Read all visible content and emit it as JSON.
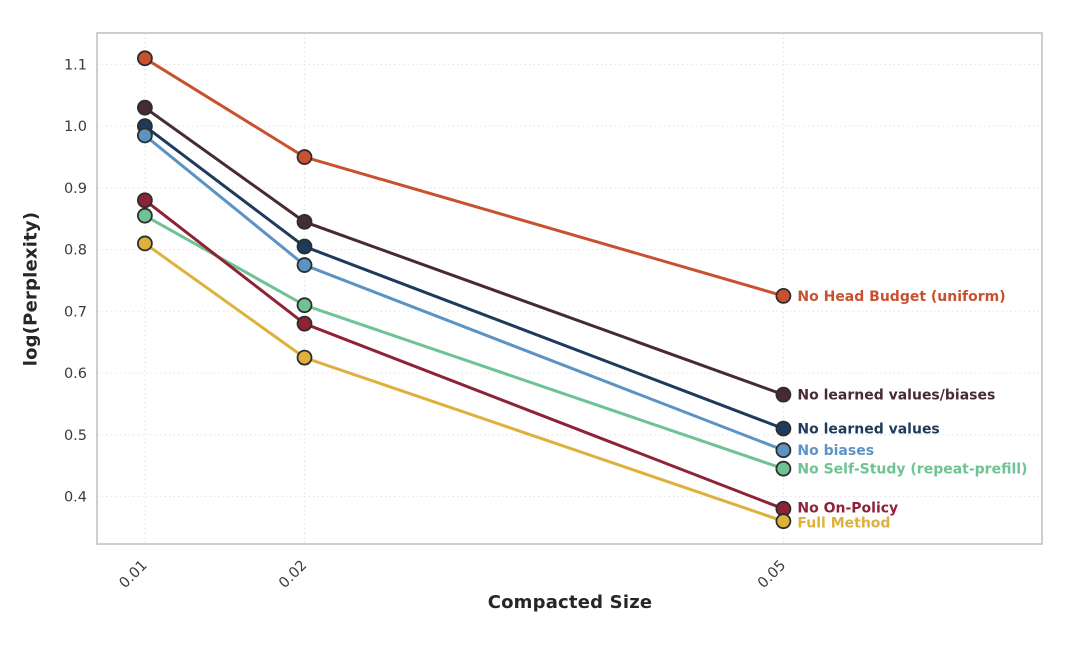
{
  "chart_data": {
    "type": "line",
    "x": [
      0.01,
      0.02,
      0.05
    ],
    "x_tick_labels": [
      "0.01",
      "0.02",
      "0.05"
    ],
    "y_ticks": [
      0.4,
      0.5,
      0.6,
      0.7,
      0.8,
      0.9,
      1.0,
      1.1
    ],
    "xlabel": "Compacted Size",
    "ylabel": "log(Perplexity)",
    "xlim": [
      0.007,
      0.0662
    ],
    "ylim": [
      0.323,
      1.151
    ],
    "grid": true,
    "legend_position": "end-of-line-labels",
    "marker": "circle",
    "series": [
      {
        "name": "No Head Budget (uniform)",
        "color": "#c9512f",
        "values": [
          1.11,
          0.95,
          0.725
        ]
      },
      {
        "name": "No learned values/biases",
        "color": "#472a36",
        "values": [
          1.03,
          0.845,
          0.565
        ]
      },
      {
        "name": "No learned values",
        "color": "#1e3a5c",
        "values": [
          1.0,
          0.805,
          0.51
        ]
      },
      {
        "name": "No biases",
        "color": "#5b93c4",
        "values": [
          0.985,
          0.775,
          0.475
        ]
      },
      {
        "name": "No Self-Study (repeat-prefill)",
        "color": "#6ec394",
        "values": [
          0.855,
          0.71,
          0.445
        ]
      },
      {
        "name": "No On-Policy",
        "color": "#8e2236",
        "values": [
          0.88,
          0.68,
          0.38
        ]
      },
      {
        "name": "Full Method",
        "color": "#deb13c",
        "values": [
          0.81,
          0.625,
          0.36
        ]
      }
    ],
    "style": {
      "marker_edge_color": "#2d2d2d",
      "spine_color": "#c9c9c9",
      "grid_color": "#e7e7e7",
      "tick_label_color": "#3b3b3b",
      "axis_title_color": "#262626",
      "background": "#ffffff"
    }
  }
}
